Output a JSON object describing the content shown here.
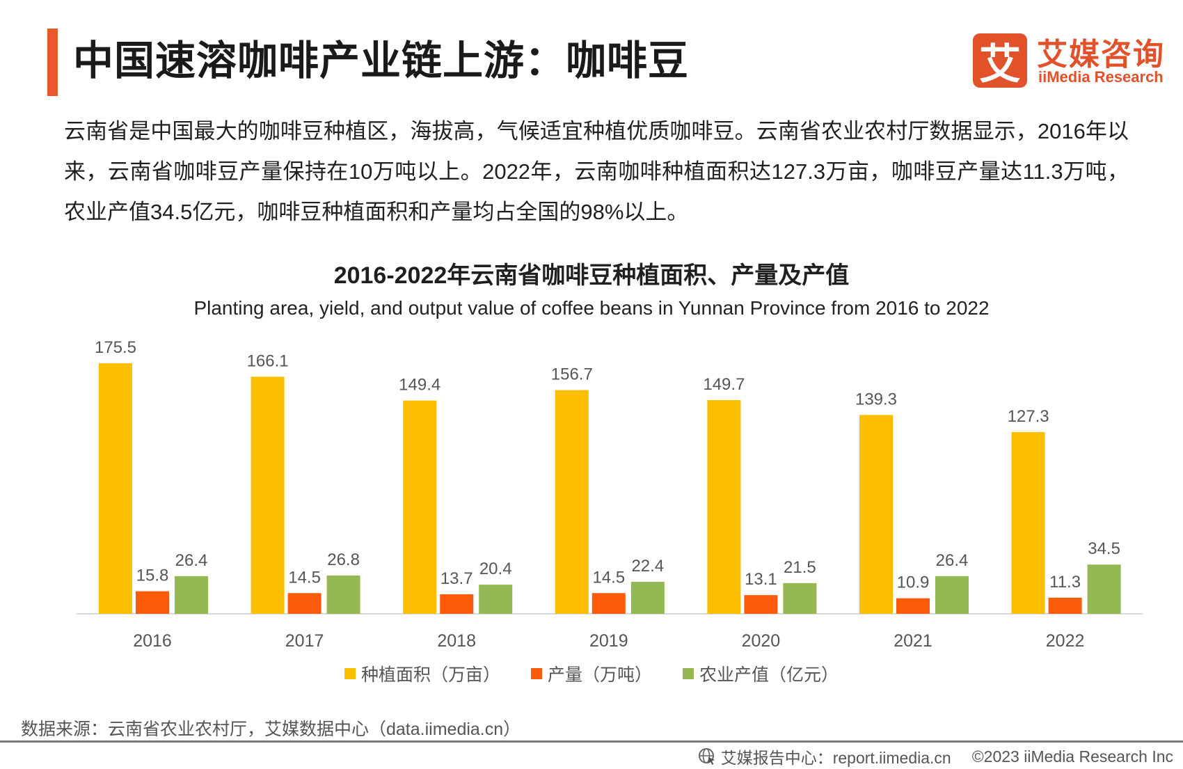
{
  "header": {
    "title": "中国速溶咖啡产业链上游：咖啡豆",
    "logo_mark": "艾",
    "logo_cn": "艾媒咨询",
    "logo_en": "iiMedia Research"
  },
  "intro": {
    "text": "云南省是中国最大的咖啡豆种植区，海拔高，气候适宜种植优质咖啡豆。云南省农业农村厅数据显示，2016年以来，云南省咖啡豆产量保持在10万吨以上。2022年，云南咖啡种植面积达127.3万亩，咖啡豆产量达11.3万吨，农业产值34.5亿元，咖啡豆种植面积和产量均占全国的98%以上。"
  },
  "chart_data": {
    "type": "bar",
    "title": "2016-2022年云南省咖啡豆种植面积、产量及产值",
    "subtitle": "Planting area, yield, and output value of coffee beans in Yunnan Province from 2016 to 2022",
    "categories": [
      "2016",
      "2017",
      "2018",
      "2019",
      "2020",
      "2021",
      "2022"
    ],
    "series": [
      {
        "name": "种植面积（万亩）",
        "color": "#fbbf00",
        "values": [
          175.5,
          166.1,
          149.4,
          156.7,
          149.7,
          139.3,
          127.3
        ]
      },
      {
        "name": "产量（万吨）",
        "color": "#fb5b0b",
        "values": [
          15.8,
          14.5,
          13.7,
          14.5,
          13.1,
          10.9,
          11.3
        ]
      },
      {
        "name": "农业产值（亿元）",
        "color": "#94b954",
        "values": [
          26.4,
          26.8,
          20.4,
          22.4,
          21.5,
          26.4,
          34.5
        ]
      }
    ],
    "ylim": [
      0,
      175.5
    ],
    "grid": false,
    "legend_position": "bottom"
  },
  "footer": {
    "source": "数据来源：云南省农业农村厅，艾媒数据中心（data.iimedia.cn）",
    "report_center": "艾媒报告中心：report.iimedia.cn",
    "copyright": "©2023  iiMedia Research  Inc"
  },
  "icons": {
    "footer_icon": "globe-cursor-icon"
  }
}
